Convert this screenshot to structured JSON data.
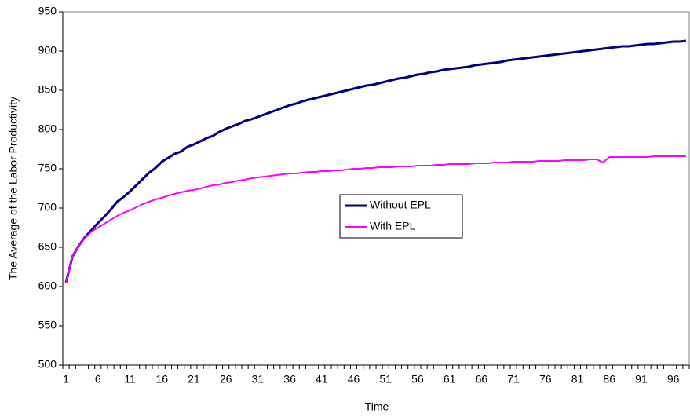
{
  "chart_data": {
    "type": "line",
    "x_label": "Time",
    "y_label": "The Average of the Labor Productivity",
    "categories": [
      1,
      null,
      null,
      null,
      null,
      6,
      null,
      null,
      null,
      null,
      11,
      null,
      null,
      null,
      null,
      16,
      null,
      null,
      null,
      null,
      21,
      null,
      null,
      null,
      null,
      26,
      null,
      null,
      null,
      null,
      31,
      null,
      null,
      null,
      null,
      36,
      null,
      null,
      null,
      null,
      41,
      null,
      null,
      null,
      null,
      46,
      null,
      null,
      null,
      null,
      51,
      null,
      null,
      null,
      null,
      56,
      null,
      null,
      null,
      null,
      61,
      null,
      null,
      null,
      null,
      66,
      null,
      null,
      null,
      null,
      71,
      null,
      null,
      null,
      null,
      76,
      null,
      null,
      null,
      null,
      81,
      null,
      null,
      null,
      null,
      86,
      null,
      null,
      null,
      null,
      91,
      null,
      null,
      null,
      null,
      96,
      null,
      null
    ],
    "series": [
      {
        "name": "Without EPL",
        "color": "#000080",
        "values": [
          605,
          638,
          652,
          663,
          672,
          681,
          689,
          698,
          708,
          714,
          721,
          729,
          737,
          745,
          751,
          759,
          764,
          769,
          772,
          778,
          781,
          785,
          789,
          792,
          797,
          801,
          804,
          807,
          811,
          813,
          816,
          819,
          822,
          825,
          828,
          831,
          833,
          836,
          838,
          840,
          842,
          844,
          846,
          848,
          850,
          852,
          854,
          856,
          857,
          859,
          861,
          863,
          865,
          866,
          868,
          870,
          871,
          873,
          874,
          876,
          877,
          878,
          879,
          880,
          882,
          883,
          884,
          885,
          886,
          888,
          889,
          890,
          891,
          892,
          893,
          894,
          895,
          896,
          897,
          898,
          899,
          900,
          901,
          902,
          903,
          904,
          905,
          906,
          906,
          907,
          908,
          909,
          909,
          910,
          911,
          912,
          912,
          913
        ]
      },
      {
        "name": "With EPL",
        "color": "#ff00ff",
        "values": [
          605,
          638,
          652,
          662,
          670,
          675,
          680,
          685,
          690,
          694,
          697,
          701,
          705,
          708,
          711,
          713,
          716,
          718,
          720,
          722,
          723,
          725,
          727,
          729,
          730,
          732,
          733,
          735,
          736,
          738,
          739,
          740,
          741,
          742,
          743,
          744,
          744,
          745,
          746,
          746,
          747,
          747,
          748,
          748,
          749,
          750,
          750,
          751,
          751,
          752,
          752,
          752,
          753,
          753,
          753,
          754,
          754,
          754,
          755,
          755,
          756,
          756,
          756,
          756,
          757,
          757,
          757,
          758,
          758,
          758,
          759,
          759,
          759,
          759,
          760,
          760,
          760,
          760,
          761,
          761,
          761,
          761,
          762,
          762,
          758,
          765,
          765,
          765,
          765,
          765,
          765,
          765,
          766,
          766,
          766,
          766,
          766,
          766
        ]
      }
    ],
    "ylim": [
      500,
      950
    ],
    "yticks": [
      500,
      550,
      600,
      650,
      700,
      750,
      800,
      850,
      900,
      950
    ],
    "grid": false
  }
}
